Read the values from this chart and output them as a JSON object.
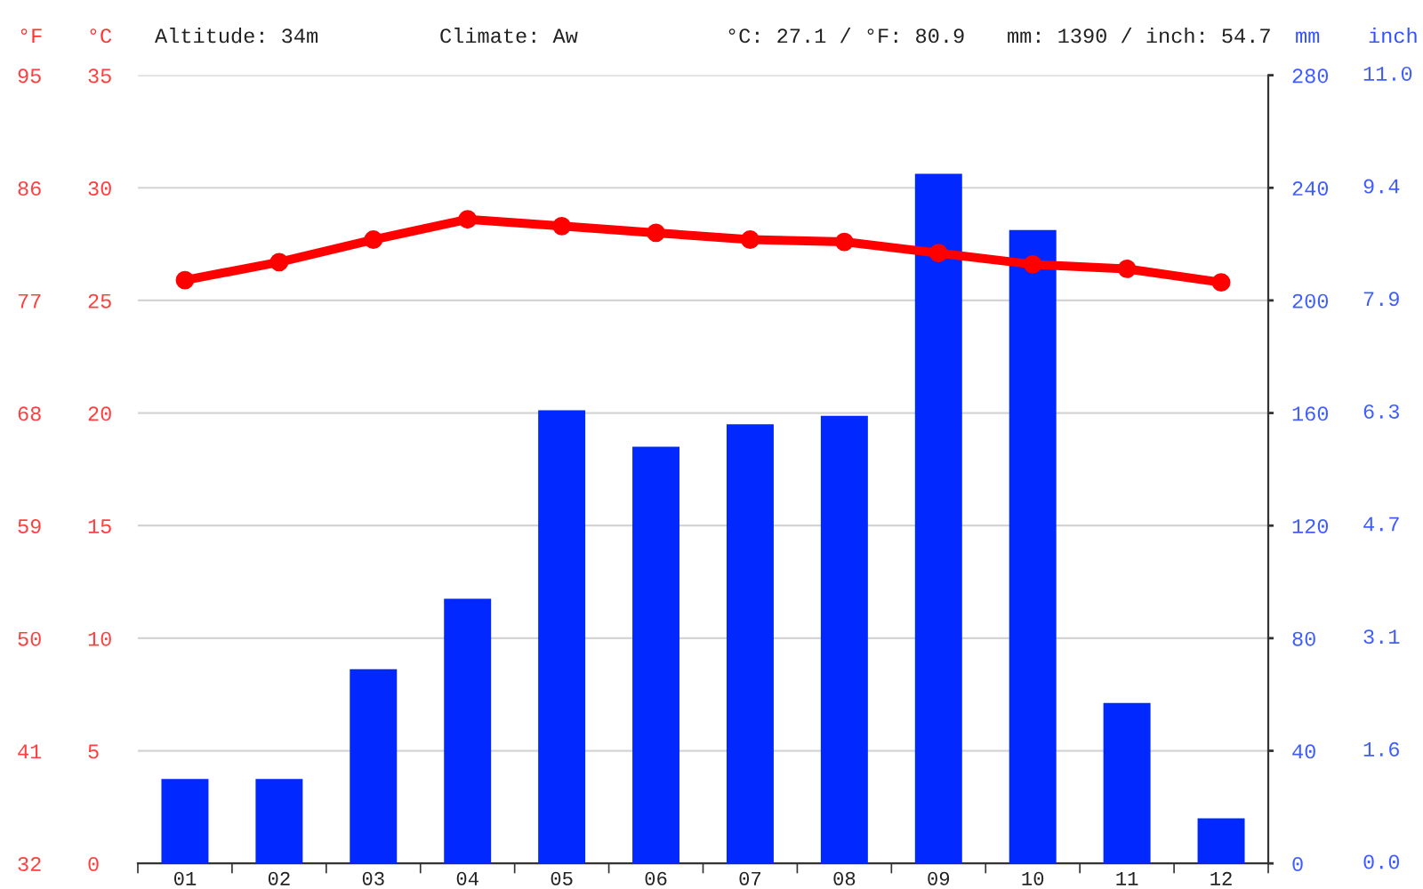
{
  "chart_data": {
    "type": "bar",
    "categories": [
      "01",
      "02",
      "03",
      "04",
      "05",
      "06",
      "07",
      "08",
      "09",
      "10",
      "11",
      "12"
    ],
    "series": [
      {
        "axis": "y2",
        "color": "#0028ff",
        "values": [
          30,
          30,
          69,
          94,
          161,
          148,
          156,
          159,
          245,
          225,
          57,
          16
        ]
      },
      {
        "type": "line",
        "color": "#ff0000",
        "values": [
          25.9,
          26.7,
          27.7,
          28.6,
          28.3,
          28.0,
          27.7,
          27.6,
          27.1,
          26.6,
          26.4,
          25.8
        ]
      }
    ],
    "ylabel": "°C",
    "y2label": "mm",
    "y3label": "°F",
    "ylim": [
      0,
      35
    ],
    "yticks": [
      0,
      5,
      10,
      15,
      20,
      25,
      30,
      35
    ],
    "y2lim": [
      0,
      280
    ],
    "y2ticks": [
      0,
      40,
      80,
      120,
      160,
      200,
      240,
      280
    ],
    "y3lim": [
      32,
      95
    ],
    "y3ticks": [
      32,
      41,
      50,
      59,
      68,
      77,
      86,
      95
    ],
    "annotations": [
      "Altitude: 34m",
      "Climate: Aw",
      "°C: 27.1 / °F: 80.9",
      "mm: 1390 / inch: 54.7",
      "inch",
      "0.0",
      "1.6",
      "3.1",
      "4.7",
      "6.3",
      "7.9",
      "9.4",
      "11.0"
    ],
    "grid": "y",
    "marker": "circle",
    "line_style": "solid"
  }
}
